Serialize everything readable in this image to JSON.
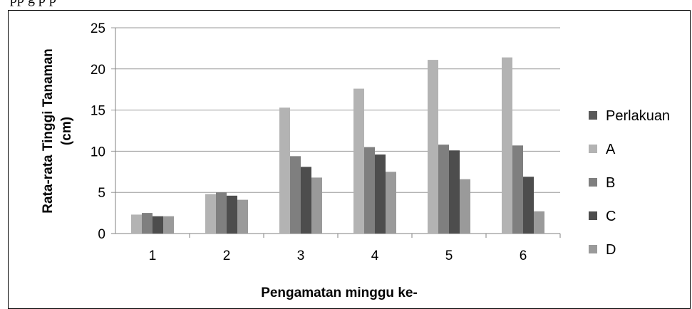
{
  "caption": "pp                             g    p          p",
  "chart_data": {
    "type": "bar",
    "title": "",
    "xlabel": "Pengamatan minggu ke-",
    "ylabel": "Rata-rata Tinggi Tanaman (cm)",
    "ylim": [
      0,
      25
    ],
    "yticks": [
      0,
      5,
      10,
      15,
      20,
      25
    ],
    "grid": true,
    "legend_position": "right",
    "categories": [
      "1",
      "2",
      "3",
      "4",
      "5",
      "6"
    ],
    "legend": [
      {
        "name": "Perlakuan",
        "color": "#595959"
      },
      {
        "name": "A",
        "color": "#b3b3b3"
      },
      {
        "name": "B",
        "color": "#7f7f7f"
      },
      {
        "name": "C",
        "color": "#4d4d4d"
      },
      {
        "name": "D",
        "color": "#9a9a9a"
      }
    ],
    "series": [
      {
        "name": "A",
        "color": "#b3b3b3",
        "values": [
          2.3,
          4.8,
          15.3,
          17.6,
          21.1,
          21.4
        ]
      },
      {
        "name": "B",
        "color": "#7f7f7f",
        "values": [
          2.5,
          5.0,
          9.4,
          10.5,
          10.8,
          10.7
        ]
      },
      {
        "name": "C",
        "color": "#4d4d4d",
        "values": [
          2.1,
          4.6,
          8.1,
          9.6,
          10.1,
          6.9
        ]
      },
      {
        "name": "D",
        "color": "#9a9a9a",
        "values": [
          2.1,
          4.1,
          6.8,
          7.5,
          6.6,
          2.7
        ]
      }
    ]
  }
}
